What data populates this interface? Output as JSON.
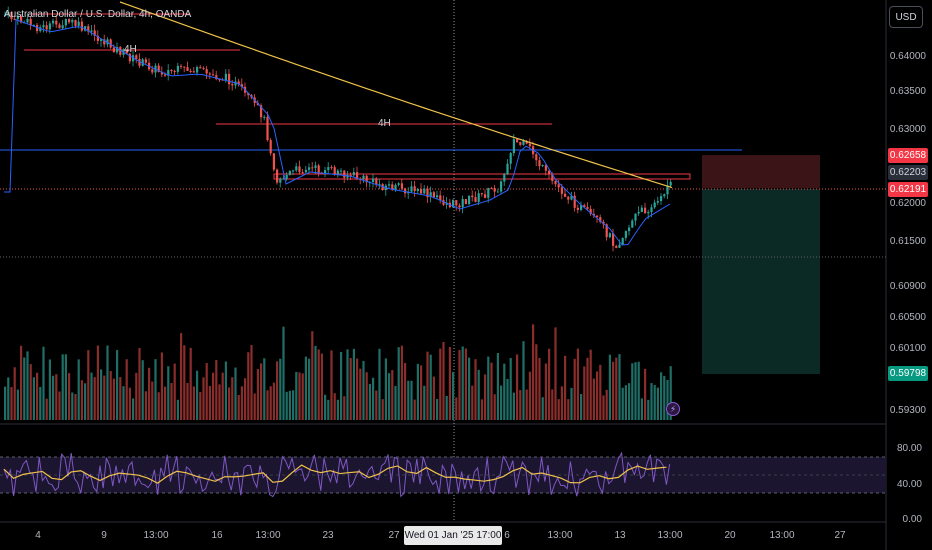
{
  "symbol": {
    "title": "Australian Dollar / U.S. Dollar, 4h, OANDA"
  },
  "currency_button": {
    "label": "USD"
  },
  "price_axis": [
    "0.64000",
    "0.63500",
    "0.63000",
    "0.62000",
    "0.61500",
    "0.60900",
    "0.60500",
    "0.60100",
    "0.59300"
  ],
  "price_tags": {
    "stop": "0.62658",
    "current": "0.62203",
    "entry": "0.62191",
    "target": "0.59798"
  },
  "date_axis": [
    "4",
    "9",
    "13:00",
    "16",
    "13:00",
    "23",
    "27",
    "6",
    "13:00",
    "13",
    "13:00",
    "20",
    "13:00",
    "27"
  ],
  "crosshair_date": "Wed 01 Jan '25   17:00",
  "rsi_axis": [
    "80.00",
    "40.00",
    "0.00"
  ],
  "timeframe_labels": [
    "4H",
    "4H"
  ],
  "alert_icon": "lightning-icon",
  "colors": {
    "bull": "#26a69a",
    "bear": "#ef5350",
    "ma_fast": "#2962ff",
    "ma_slow": "#f0c24b",
    "hline_red": "#f23645",
    "hline_blue": "#2962ff",
    "rsi_line": "#7e57c2",
    "rsi_ma": "#f0c24b",
    "stop_zone": "#3b1418",
    "target_zone": "#0b2a26"
  }
}
